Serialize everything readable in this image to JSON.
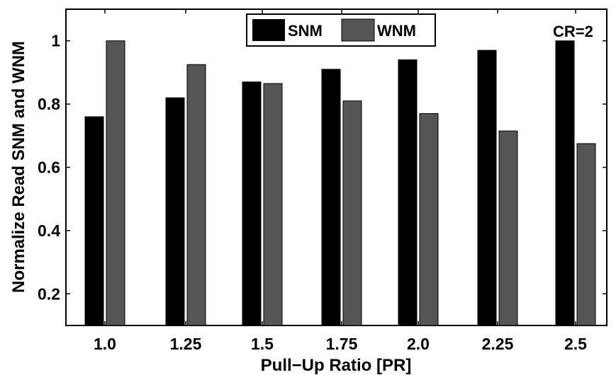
{
  "chart_data": {
    "type": "bar",
    "categories": [
      "1.0",
      "1.25",
      "1.5",
      "1.75",
      "2.0",
      "2.25",
      "2.5"
    ],
    "series": [
      {
        "name": "SNM",
        "color": "#000000",
        "values": [
          0.76,
          0.82,
          0.87,
          0.91,
          0.94,
          0.97,
          1.0
        ]
      },
      {
        "name": "WNM",
        "color": "#555555",
        "values": [
          1.0,
          0.925,
          0.865,
          0.81,
          0.77,
          0.715,
          0.675
        ]
      }
    ],
    "xlabel": "Pull−Up Ratio [PR]",
    "ylabel": "Normalize Read SNM and WNM",
    "ylim": [
      0.1,
      1.1
    ],
    "yticks": [
      "0.2",
      "0.4",
      "0.6",
      "0.8",
      "1"
    ],
    "ytick_values": [
      0.2,
      0.4,
      0.6,
      0.8,
      1.0
    ],
    "annotation": "CR=2",
    "legend": {
      "position": "top-center",
      "entries": [
        "SNM",
        "WNM"
      ]
    },
    "grid": false
  }
}
